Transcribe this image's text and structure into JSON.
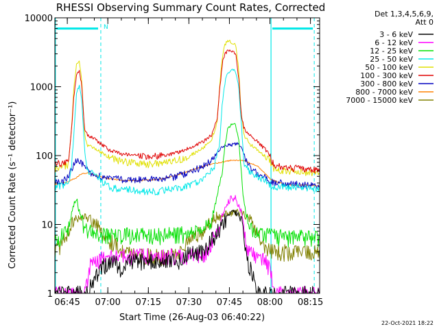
{
  "chart_data": {
    "type": "line",
    "title": "RHESSI Observing Summary Count Rates, Corrected",
    "xlabel": "Start Time (26-Aug-03 06:40:22)",
    "ylabel": "Corrected Count Rate (s⁻¹ detector⁻¹)",
    "yscale": "log",
    "ylim": [
      1,
      10000
    ],
    "xlim_minutes": [
      0,
      98
    ],
    "x_ticks": [
      {
        "label": "06:45",
        "t": 4.6
      },
      {
        "label": "07:00",
        "t": 19.6
      },
      {
        "label": "07:15",
        "t": 34.6
      },
      {
        "label": "07:30",
        "t": 49.6
      },
      {
        "label": "07:45",
        "t": 64.6
      },
      {
        "label": "08:00",
        "t": 79.6
      },
      {
        "label": "08:15",
        "t": 94.6
      }
    ],
    "y_ticks": [
      {
        "label": "1",
        "v": 1
      },
      {
        "label": "10",
        "v": 10
      },
      {
        "label": "100",
        "v": 100
      },
      {
        "label": "1000",
        "v": 1000
      },
      {
        "label": "10000",
        "v": 10000
      }
    ],
    "legend_header": [
      "Det 1,3,4,5,6,9,",
      "Att 0"
    ],
    "legend_position": "right",
    "annotations": {
      "night_marker": "N",
      "timestamp": "22-Oct-2021 18:22"
    },
    "markers": {
      "color": "#00e8e8",
      "solid_lines_t": [
        0.2,
        80.0
      ],
      "dashed_lines_t": [
        17.0,
        96.0
      ],
      "bars": [
        [
          0.5,
          16.0
        ],
        [
          80.5,
          95.5
        ]
      ],
      "bar_level": 7000
    },
    "series": [
      {
        "name": "3 - 6 keV",
        "color": "#000000",
        "style": "noisy",
        "floor": 1.0,
        "points": [
          [
            12,
            1
          ],
          [
            14,
            1.5
          ],
          [
            18,
            2.5
          ],
          [
            22,
            3
          ],
          [
            25,
            2
          ],
          [
            28,
            3
          ],
          [
            35,
            3
          ],
          [
            40,
            3
          ],
          [
            46,
            3
          ],
          [
            50,
            4
          ],
          [
            55,
            4
          ],
          [
            58,
            6
          ],
          [
            62,
            10
          ],
          [
            65,
            15
          ],
          [
            67,
            15
          ],
          [
            69,
            12
          ],
          [
            70,
            6
          ],
          [
            71,
            3
          ],
          [
            73,
            2
          ],
          [
            75,
            1
          ],
          [
            98,
            1
          ]
        ]
      },
      {
        "name": "6 - 12 keV",
        "color": "#ff00ff",
        "style": "noisy",
        "floor": 1.0,
        "points": [
          [
            11,
            1
          ],
          [
            12,
            1.5
          ],
          [
            13,
            2.5
          ],
          [
            15,
            3
          ],
          [
            20,
            3.5
          ],
          [
            30,
            3.5
          ],
          [
            40,
            3.5
          ],
          [
            50,
            3.5
          ],
          [
            56,
            4
          ],
          [
            60,
            8
          ],
          [
            63,
            18
          ],
          [
            65,
            24
          ],
          [
            67,
            24
          ],
          [
            69,
            16
          ],
          [
            70,
            8
          ],
          [
            71,
            4.5
          ],
          [
            74,
            3.5
          ],
          [
            78,
            3
          ],
          [
            80,
            2
          ],
          [
            81,
            1
          ],
          [
            98,
            1
          ]
        ]
      },
      {
        "name": "12 - 25 keV",
        "color": "#00e000",
        "style": "noisy",
        "floor": 1.0,
        "points": [
          [
            0,
            6
          ],
          [
            5,
            8
          ],
          [
            7,
            20
          ],
          [
            8,
            25
          ],
          [
            9,
            15
          ],
          [
            11,
            9
          ],
          [
            13,
            8
          ],
          [
            15,
            7
          ],
          [
            20,
            7
          ],
          [
            30,
            7
          ],
          [
            40,
            7
          ],
          [
            50,
            7.5
          ],
          [
            55,
            8
          ],
          [
            58,
            12
          ],
          [
            60,
            25
          ],
          [
            62,
            60
          ],
          [
            63,
            150
          ],
          [
            64,
            240
          ],
          [
            65,
            280
          ],
          [
            66,
            290
          ],
          [
            67,
            270
          ],
          [
            68,
            180
          ],
          [
            69,
            60
          ],
          [
            70,
            20
          ],
          [
            71,
            12
          ],
          [
            73,
            8
          ],
          [
            77,
            7
          ],
          [
            80,
            7
          ],
          [
            85,
            6.5
          ],
          [
            90,
            6.5
          ],
          [
            95,
            6.5
          ],
          [
            98,
            6.5
          ]
        ]
      },
      {
        "name": "25 - 50 keV",
        "color": "#00e8e8",
        "style": "noisy",
        "floor": 1.0,
        "points": [
          [
            0,
            35
          ],
          [
            3,
            37
          ],
          [
            5,
            40
          ],
          [
            6,
            60
          ],
          [
            7,
            200
          ],
          [
            8,
            800
          ],
          [
            9,
            1050
          ],
          [
            10,
            600
          ],
          [
            11,
            120
          ],
          [
            12,
            60
          ],
          [
            14,
            55
          ],
          [
            16,
            50
          ],
          [
            18,
            40
          ],
          [
            20,
            35
          ],
          [
            23,
            33
          ],
          [
            28,
            32
          ],
          [
            32,
            30
          ],
          [
            37,
            30
          ],
          [
            42,
            32
          ],
          [
            47,
            35
          ],
          [
            52,
            40
          ],
          [
            56,
            50
          ],
          [
            59,
            70
          ],
          [
            61,
            150
          ],
          [
            62,
            600
          ],
          [
            63,
            1200
          ],
          [
            64,
            1550
          ],
          [
            65,
            1700
          ],
          [
            66,
            1750
          ],
          [
            67,
            1600
          ],
          [
            68,
            1000
          ],
          [
            69,
            300
          ],
          [
            70,
            80
          ],
          [
            72,
            60
          ],
          [
            75,
            50
          ],
          [
            79,
            40
          ],
          [
            81,
            35
          ],
          [
            85,
            35
          ],
          [
            90,
            35
          ],
          [
            95,
            32
          ],
          [
            98,
            32
          ]
        ]
      },
      {
        "name": "50 - 100 keV",
        "color": "#e0e000",
        "style": "noisy",
        "floor": 1.0,
        "points": [
          [
            0,
            65
          ],
          [
            3,
            68
          ],
          [
            5,
            75
          ],
          [
            6,
            200
          ],
          [
            7,
            900
          ],
          [
            8,
            2100
          ],
          [
            9,
            2400
          ],
          [
            10,
            1200
          ],
          [
            11,
            200
          ],
          [
            12,
            140
          ],
          [
            14,
            130
          ],
          [
            16,
            120
          ],
          [
            20,
            95
          ],
          [
            25,
            82
          ],
          [
            30,
            78
          ],
          [
            35,
            75
          ],
          [
            40,
            78
          ],
          [
            45,
            85
          ],
          [
            50,
            100
          ],
          [
            55,
            130
          ],
          [
            58,
            170
          ],
          [
            60,
            300
          ],
          [
            61,
            1000
          ],
          [
            62,
            2800
          ],
          [
            63,
            4200
          ],
          [
            64,
            4500
          ],
          [
            65,
            4500
          ],
          [
            66,
            4400
          ],
          [
            67,
            4000
          ],
          [
            68,
            1800
          ],
          [
            69,
            400
          ],
          [
            70,
            200
          ],
          [
            72,
            150
          ],
          [
            75,
            120
          ],
          [
            79,
            90
          ],
          [
            81,
            65
          ],
          [
            85,
            60
          ],
          [
            90,
            58
          ],
          [
            95,
            56
          ],
          [
            98,
            55
          ]
        ]
      },
      {
        "name": "100 - 300 keV",
        "color": "#e00000",
        "style": "noisy",
        "floor": 1.0,
        "points": [
          [
            0,
            75
          ],
          [
            3,
            78
          ],
          [
            5,
            85
          ],
          [
            6,
            200
          ],
          [
            7,
            700
          ],
          [
            8,
            1500
          ],
          [
            9,
            1750
          ],
          [
            10,
            1000
          ],
          [
            11,
            230
          ],
          [
            12,
            200
          ],
          [
            14,
            180
          ],
          [
            16,
            160
          ],
          [
            20,
            120
          ],
          [
            25,
            105
          ],
          [
            30,
            100
          ],
          [
            35,
            95
          ],
          [
            40,
            100
          ],
          [
            45,
            110
          ],
          [
            50,
            130
          ],
          [
            55,
            160
          ],
          [
            58,
            200
          ],
          [
            60,
            330
          ],
          [
            61,
            900
          ],
          [
            62,
            2200
          ],
          [
            63,
            3100
          ],
          [
            64,
            3300
          ],
          [
            65,
            3300
          ],
          [
            66,
            3200
          ],
          [
            67,
            2900
          ],
          [
            68,
            1400
          ],
          [
            69,
            400
          ],
          [
            70,
            250
          ],
          [
            72,
            200
          ],
          [
            75,
            160
          ],
          [
            79,
            110
          ],
          [
            81,
            75
          ],
          [
            85,
            68
          ],
          [
            90,
            65
          ],
          [
            95,
            63
          ],
          [
            98,
            62
          ]
        ]
      },
      {
        "name": "300 - 800 keV",
        "color": "#0000c0",
        "style": "noisy",
        "floor": 1.0,
        "points": [
          [
            0,
            40
          ],
          [
            3,
            42
          ],
          [
            5,
            50
          ],
          [
            7,
            75
          ],
          [
            8,
            85
          ],
          [
            9,
            80
          ],
          [
            11,
            70
          ],
          [
            13,
            58
          ],
          [
            15,
            52
          ],
          [
            20,
            48
          ],
          [
            25,
            45
          ],
          [
            30,
            45
          ],
          [
            35,
            45
          ],
          [
            40,
            47
          ],
          [
            45,
            50
          ],
          [
            50,
            58
          ],
          [
            55,
            70
          ],
          [
            58,
            85
          ],
          [
            60,
            110
          ],
          [
            62,
            135
          ],
          [
            64,
            140
          ],
          [
            66,
            145
          ],
          [
            68,
            150
          ],
          [
            69,
            130
          ],
          [
            70,
            100
          ],
          [
            72,
            70
          ],
          [
            75,
            55
          ],
          [
            80,
            42
          ],
          [
            85,
            40
          ],
          [
            90,
            38
          ],
          [
            95,
            37
          ],
          [
            98,
            37
          ]
        ]
      },
      {
        "name": "800 - 7000 keV",
        "color": "#ff8000",
        "style": "smooth",
        "floor": 1.0,
        "points": [
          [
            0,
            38
          ],
          [
            5,
            42
          ],
          [
            8,
            48
          ],
          [
            10,
            55
          ],
          [
            12,
            56
          ],
          [
            15,
            52
          ],
          [
            20,
            46
          ],
          [
            25,
            44
          ],
          [
            30,
            43
          ],
          [
            35,
            44
          ],
          [
            40,
            46
          ],
          [
            45,
            52
          ],
          [
            50,
            60
          ],
          [
            55,
            70
          ],
          [
            60,
            78
          ],
          [
            65,
            85
          ],
          [
            70,
            85
          ],
          [
            75,
            70
          ],
          [
            80,
            45
          ],
          [
            85,
            38
          ],
          [
            90,
            37
          ],
          [
            95,
            37
          ],
          [
            98,
            36
          ]
        ]
      },
      {
        "name": "7000 - 15000 keV",
        "color": "#808000",
        "style": "noisy",
        "floor": 1.0,
        "points": [
          [
            0,
            4
          ],
          [
            2,
            5
          ],
          [
            4,
            7
          ],
          [
            6,
            10
          ],
          [
            8,
            12
          ],
          [
            11,
            13
          ],
          [
            14,
            11
          ],
          [
            17,
            8
          ],
          [
            20,
            6
          ],
          [
            23,
            5
          ],
          [
            26,
            4
          ],
          [
            30,
            3.8
          ],
          [
            35,
            3.5
          ],
          [
            40,
            3.5
          ],
          [
            45,
            4
          ],
          [
            48,
            5
          ],
          [
            52,
            7
          ],
          [
            56,
            9
          ],
          [
            60,
            12
          ],
          [
            63,
            14
          ],
          [
            66,
            15
          ],
          [
            69,
            15
          ],
          [
            72,
            12
          ],
          [
            75,
            8
          ],
          [
            78,
            5
          ],
          [
            81,
            4
          ],
          [
            85,
            4
          ],
          [
            90,
            4
          ],
          [
            95,
            4
          ],
          [
            98,
            4
          ]
        ]
      }
    ]
  }
}
